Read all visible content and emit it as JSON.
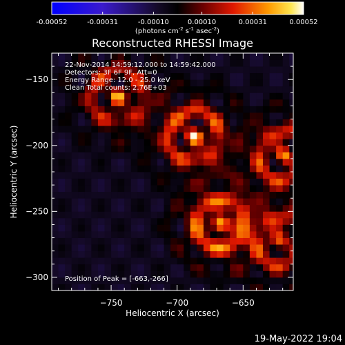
{
  "chart_data": {
    "type": "heatmap",
    "title": "Reconstructed RHESSI Image",
    "xlabel": "Heliocentric X (arcsec)",
    "ylabel": "Heliocentric Y (arcsec)",
    "xlim": [
      -795,
      -612
    ],
    "ylim": [
      -310,
      -130
    ],
    "x_ticks": [
      -750,
      -700,
      -650
    ],
    "y_ticks": [
      -300,
      -250,
      -200,
      -150
    ],
    "colorbar": {
      "range": [
        -0.00052,
        0.00052
      ],
      "tick_values": [
        -0.00052,
        -0.00031,
        -0.0001,
        0.0001,
        0.00031,
        0.00052
      ],
      "tick_labels": [
        "-0.00052",
        "-0.00031",
        "-0.00010",
        "0.00010",
        "0.00031",
        "0.00052"
      ],
      "unit_label": "(photons cm",
      "unit_exp1": "-2",
      "unit_mid": " s",
      "unit_exp2": "-1",
      "unit_mid2": " asec",
      "unit_exp3": "-2",
      "unit_end": ")"
    },
    "annotations": [
      "22-Nov-2014 14:59:12.000 to 14:59:42.000",
      "Detectors: 3F 6F 9F, Att=0",
      "Energy Range: 12.0 - 25.0 keV",
      "Clean     Total counts: 2.76E+03"
    ],
    "peak_label": "Position of Peak = [-663,-266]",
    "peak": [
      -663,
      -266
    ],
    "bright_sources": [
      {
        "x": -690,
        "y": -195,
        "level": 0.00045
      },
      {
        "x": -748,
        "y": -165,
        "level": 0.00035
      },
      {
        "x": -622,
        "y": -210,
        "level": 0.0004
      },
      {
        "x": -670,
        "y": -262,
        "level": 0.00052
      },
      {
        "x": -625,
        "y": -275,
        "level": 0.00035
      }
    ],
    "timestamp": "19-May-2022 19:04"
  }
}
